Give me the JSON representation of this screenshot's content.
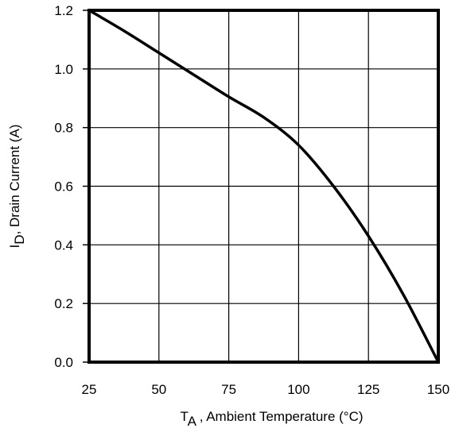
{
  "chart_data": {
    "type": "line",
    "xlabel": {
      "main": "T",
      "sub": "A",
      "rest": " , Ambient Temperature (°C)"
    },
    "ylabel": {
      "main": "I",
      "sub": "D",
      "rest": ",  Drain Current (A)"
    },
    "xlim": [
      25,
      150
    ],
    "ylim": [
      0,
      1.2
    ],
    "x_ticks": [
      25,
      50,
      75,
      100,
      125,
      150
    ],
    "y_ticks": [
      0.0,
      0.2,
      0.4,
      0.6,
      0.8,
      1.0,
      1.2
    ],
    "x_tick_labels": [
      "25",
      "50",
      "75",
      "100",
      "125",
      "150"
    ],
    "y_tick_labels": [
      "0.0",
      "0.2",
      "0.4",
      "0.6",
      "0.8",
      "1.0",
      "1.2"
    ],
    "grid": true,
    "series": [
      {
        "x": [
          25,
          37.5,
          50,
          62.5,
          75,
          87.5,
          100,
          112.5,
          125,
          137.5,
          150
        ],
        "y": [
          1.2,
          1.13,
          1.055,
          0.98,
          0.905,
          0.835,
          0.74,
          0.6,
          0.43,
          0.23,
          0.0
        ],
        "color": "#000000"
      }
    ]
  }
}
